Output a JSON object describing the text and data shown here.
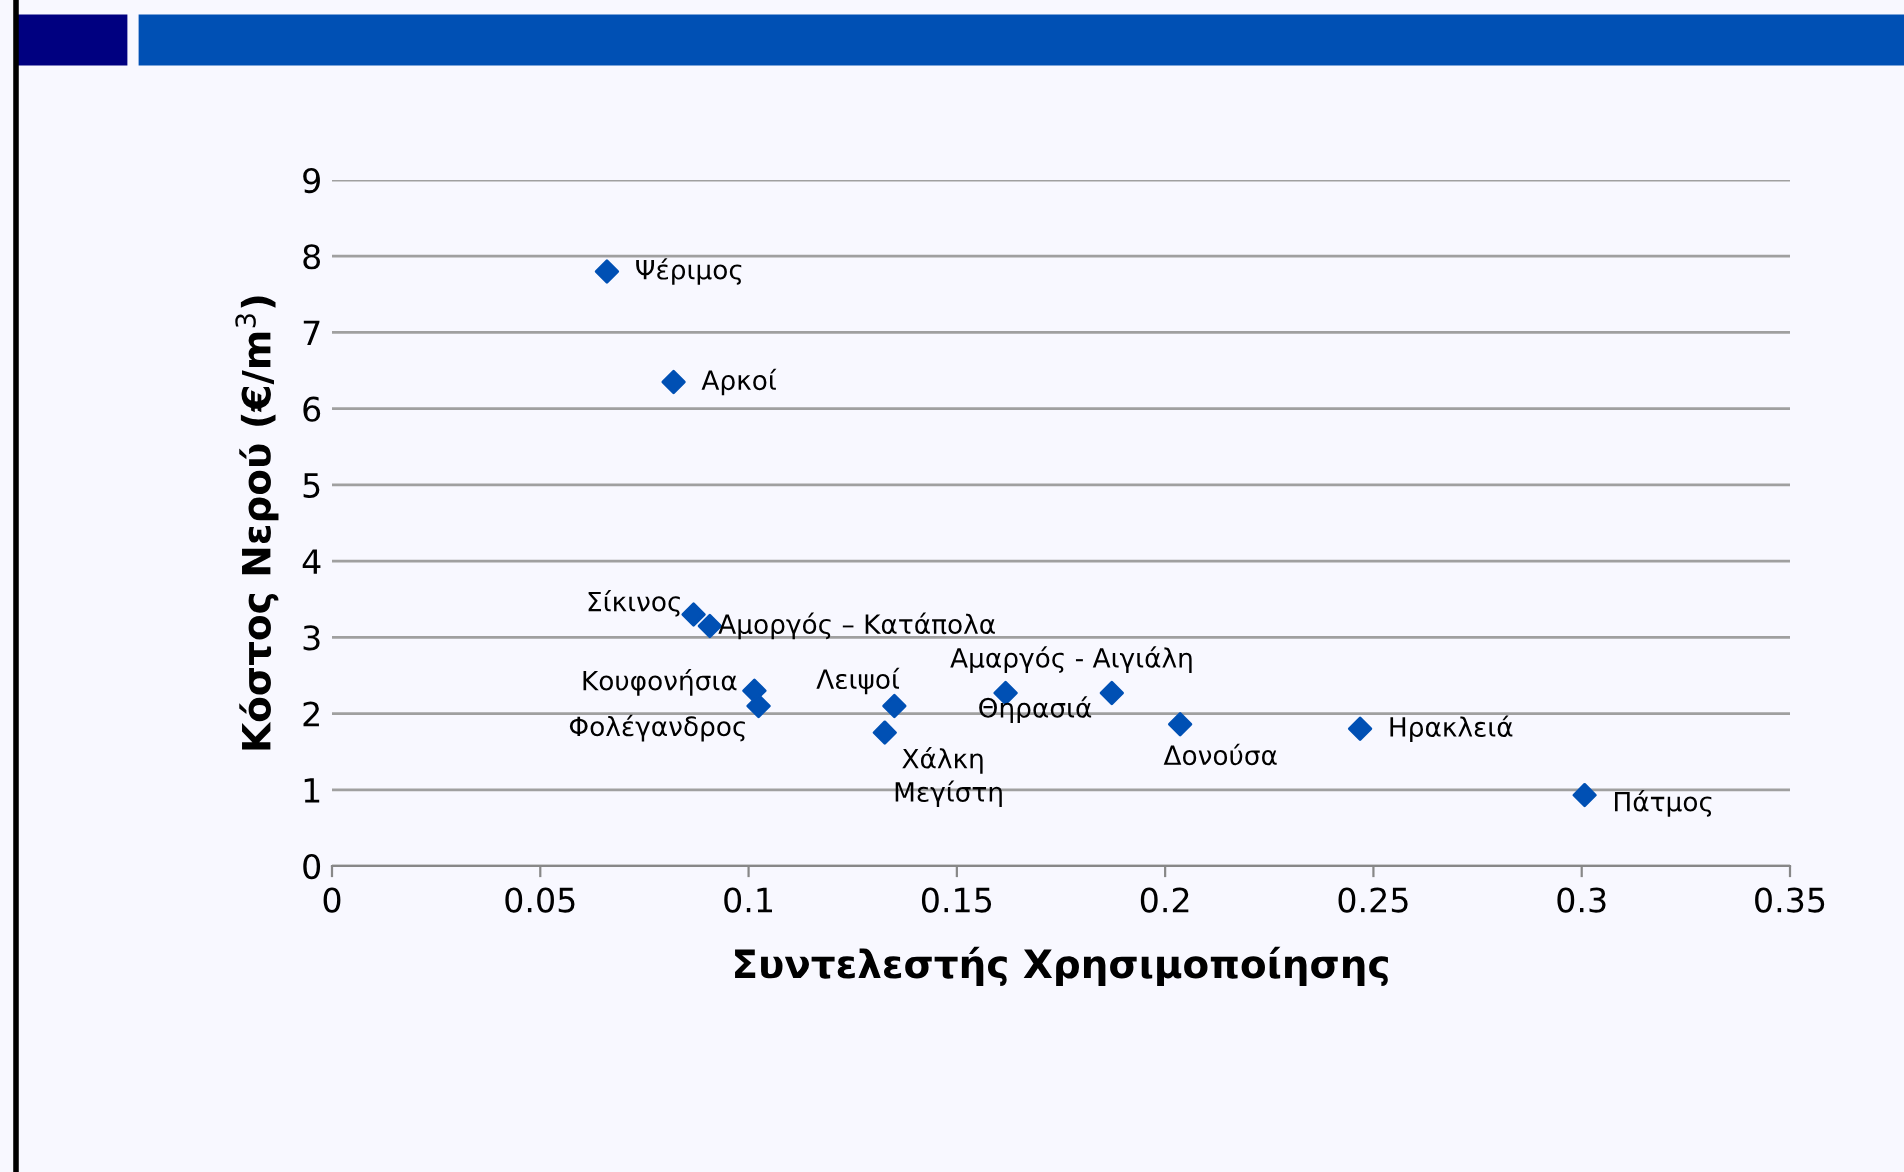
{
  "chart_data": {
    "type": "scatter",
    "xlabel": "Συντελεστής Χρησιμοποίησης",
    "ylabel": "Κόστος Νερού (€/m$^{3}$)",
    "series": [
      {
        "color": "#0050b4",
        "x": [
          0.066,
          0.082,
          0.0868,
          0.0907,
          0.1014,
          0.1024,
          0.135,
          0.1327,
          0.1617,
          0.1872,
          0.2036,
          0.2468,
          0.3007
        ],
        "values": [
          7.8,
          6.35,
          3.3,
          3.15,
          2.3,
          2.1,
          2.1,
          1.75,
          2.27,
          2.27,
          1.86,
          1.8,
          0.93
        ]
      }
    ],
    "annotations": [
      {
        "text": "Ψέριμος",
        "x": 0.066,
        "y": 7.8
      },
      {
        "text": "Αρκοί",
        "x": 0.082,
        "y": 6.35
      },
      {
        "text": "Σίκινος",
        "x": 0.0868,
        "y": 3.3
      },
      {
        "text": "Αμοργός – Κατάπολα",
        "x": 0.0907,
        "y": 3.15
      },
      {
        "text": "Κουφονήσια",
        "x": 0.1014,
        "y": 2.3
      },
      {
        "text": "Φολέγανδρος",
        "x": 0.1024,
        "y": 2.1
      },
      {
        "text": "Λειψοί",
        "x": 0.135,
        "y": 2.1
      },
      {
        "text": "Χάλκη",
        "x": 0.1327,
        "y": 1.75
      },
      {
        "text": "Μεγίστη",
        "x": 0.1327,
        "y": 1.75
      },
      {
        "text": "Αμαργός - Αιγιάλη",
        "x": 0.1617,
        "y": 2.27
      },
      {
        "text": "Θηρασιά",
        "x": 0.1872,
        "y": 2.27
      },
      {
        "text": "Δονούσα",
        "x": 0.2036,
        "y": 1.86
      },
      {
        "text": "Ηρακλειά",
        "x": 0.2468,
        "y": 1.8
      },
      {
        "text": "Πάτμος",
        "x": 0.3007,
        "y": 0.93
      }
    ],
    "xlim": [
      0,
      0.35
    ],
    "xticks": [
      {
        "value": 0,
        "label": "0"
      },
      0.05,
      0.1,
      0.15,
      0.2,
      0.25,
      0.3,
      0.35
    ],
    "ylim": [
      0,
      9
    ],
    "yticks": [
      0,
      1,
      2,
      3,
      4,
      5,
      6,
      7,
      8,
      9
    ],
    "grid": "y",
    "marker": "diamond",
    "legend": false
  }
}
